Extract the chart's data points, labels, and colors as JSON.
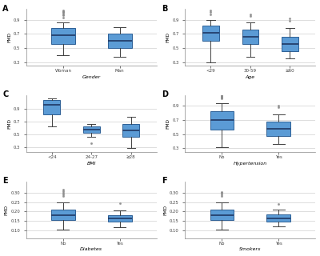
{
  "panels": [
    {
      "label": "A",
      "xlabel": "Gender",
      "categories": [
        "Woman",
        "Man"
      ],
      "ylabel": "FMD",
      "ylim": [
        0.25,
        1.05
      ],
      "yticks": [
        0.3,
        0.5,
        0.7,
        0.9
      ],
      "boxes": [
        {
          "q1": 0.56,
          "median": 0.68,
          "q3": 0.78,
          "whislo": 0.4,
          "whishi": 0.86,
          "fliers": [
            0.93,
            0.96,
            0.98,
            1.0,
            1.01,
            1.02,
            1.03
          ]
        },
        {
          "q1": 0.5,
          "median": 0.6,
          "q3": 0.7,
          "whislo": 0.38,
          "whishi": 0.8,
          "fliers": []
        }
      ]
    },
    {
      "label": "B",
      "xlabel": "Age",
      "categories": [
        "<29",
        "30-59",
        "≥60"
      ],
      "ylabel": "FMD",
      "ylim": [
        0.25,
        1.05
      ],
      "yticks": [
        0.3,
        0.5,
        0.7,
        0.9
      ],
      "boxes": [
        {
          "q1": 0.6,
          "median": 0.72,
          "q3": 0.82,
          "whislo": 0.3,
          "whishi": 0.9,
          "fliers": [
            0.98,
            1.01,
            1.03
          ]
        },
        {
          "q1": 0.56,
          "median": 0.66,
          "q3": 0.76,
          "whislo": 0.38,
          "whishi": 0.86,
          "fliers": [
            0.95,
            0.97
          ]
        },
        {
          "q1": 0.46,
          "median": 0.56,
          "q3": 0.66,
          "whislo": 0.36,
          "whishi": 0.78,
          "fliers": [
            0.88,
            0.92
          ]
        }
      ]
    },
    {
      "label": "C",
      "xlabel": "BMI",
      "categories": [
        "<24",
        "24-27",
        "≥28"
      ],
      "ylabel": "FMD",
      "ylim": [
        0.22,
        1.12
      ],
      "yticks": [
        0.3,
        0.5,
        0.7,
        0.9
      ],
      "boxes": [
        {
          "q1": 0.82,
          "median": 0.97,
          "q3": 1.04,
          "whislo": 0.62,
          "whishi": 1.07,
          "fliers": []
        },
        {
          "q1": 0.52,
          "median": 0.57,
          "q3": 0.62,
          "whislo": 0.46,
          "whishi": 0.66,
          "fliers": [
            0.36
          ]
        },
        {
          "q1": 0.46,
          "median": 0.56,
          "q3": 0.66,
          "whislo": 0.28,
          "whishi": 0.78,
          "fliers": []
        }
      ]
    },
    {
      "label": "D",
      "xlabel": "Hypertension",
      "categories": [
        "No",
        "Yes"
      ],
      "ylabel": "FMD",
      "ylim": [
        0.25,
        1.05
      ],
      "yticks": [
        0.3,
        0.5,
        0.7,
        0.9
      ],
      "boxes": [
        {
          "q1": 0.56,
          "median": 0.7,
          "q3": 0.82,
          "whislo": 0.32,
          "whishi": 0.94,
          "fliers": [
            1.0,
            1.02,
            1.03,
            1.04,
            1.05
          ]
        },
        {
          "q1": 0.48,
          "median": 0.58,
          "q3": 0.68,
          "whislo": 0.36,
          "whishi": 0.78,
          "fliers": [
            0.88,
            0.9
          ]
        }
      ]
    },
    {
      "label": "E",
      "xlabel": "Diabetes",
      "categories": [
        "No",
        "Yes"
      ],
      "ylabel": "FMD",
      "ylim": [
        0.06,
        0.36
      ],
      "yticks": [
        0.1,
        0.15,
        0.2,
        0.25,
        0.3
      ],
      "boxes": [
        {
          "q1": 0.155,
          "median": 0.182,
          "q3": 0.21,
          "whislo": 0.105,
          "whishi": 0.25,
          "fliers": [
            0.28,
            0.29,
            0.3,
            0.308,
            0.315
          ]
        },
        {
          "q1": 0.145,
          "median": 0.162,
          "q3": 0.182,
          "whislo": 0.115,
          "whishi": 0.205,
          "fliers": [
            0.242
          ]
        }
      ]
    },
    {
      "label": "F",
      "xlabel": "Smokers",
      "categories": [
        "No",
        "Yes"
      ],
      "ylabel": "FMD",
      "ylim": [
        0.06,
        0.36
      ],
      "yticks": [
        0.1,
        0.15,
        0.2,
        0.25,
        0.3
      ],
      "boxes": [
        {
          "q1": 0.155,
          "median": 0.18,
          "q3": 0.21,
          "whislo": 0.105,
          "whishi": 0.25,
          "fliers": [
            0.28,
            0.29,
            0.298,
            0.305
          ]
        },
        {
          "q1": 0.148,
          "median": 0.165,
          "q3": 0.185,
          "whislo": 0.12,
          "whishi": 0.21,
          "fliers": [
            0.238
          ]
        }
      ]
    }
  ],
  "box_facecolor": "#5B9BD5",
  "box_edgecolor": "#2E6096",
  "median_color": "#1F3864",
  "whisker_color": "#404040",
  "cap_color": "#404040",
  "flier_color": "#888888",
  "background_color": "#ffffff",
  "grid_color": "#d0d0d0",
  "spine_color": "#888888"
}
